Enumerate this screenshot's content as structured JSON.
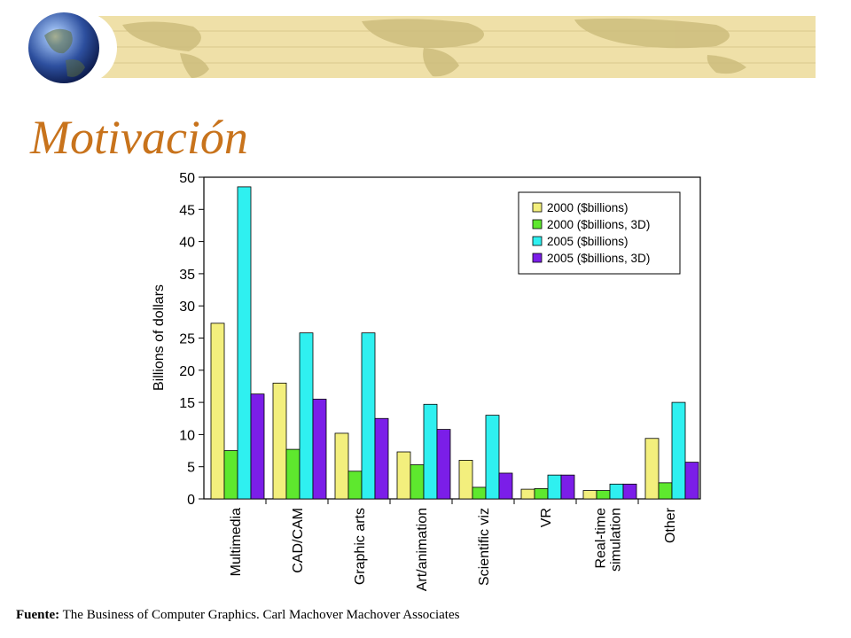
{
  "slide": {
    "title": "Motivación",
    "source_label": "Fuente:",
    "source_text": "The Business of Computer Graphics. Carl Machover Machover Associates"
  },
  "decor": {
    "banner_color": "#efe0a8",
    "title_color": "#c8731c",
    "globe_icon": "globe-icon"
  },
  "chart_data": {
    "type": "bar",
    "title": "",
    "xlabel": "",
    "ylabel": "Billions of dollars",
    "ylim": [
      0,
      50
    ],
    "yticks": [
      0,
      5,
      10,
      15,
      20,
      25,
      30,
      35,
      40,
      45,
      50
    ],
    "categories": [
      "Multimedia",
      "CAD/CAM",
      "Graphic arts",
      "Art/animation",
      "Scientific viz",
      "VR",
      "Real-time simulation",
      "Other"
    ],
    "category_lines": [
      [
        "Multimedia"
      ],
      [
        "CAD/CAM"
      ],
      [
        "Graphic arts"
      ],
      [
        "Art/animation"
      ],
      [
        "Scientific viz"
      ],
      [
        "VR"
      ],
      [
        "Real-time",
        "simulation"
      ],
      [
        "Other"
      ]
    ],
    "series": [
      {
        "name": "2000 ($billions)",
        "color": "#f3ef7d",
        "values": [
          27.3,
          18.0,
          10.2,
          7.3,
          6.0,
          1.5,
          1.3,
          9.4
        ]
      },
      {
        "name": "2000 ($billions, 3D)",
        "color": "#5ee82e",
        "values": [
          7.5,
          7.7,
          4.3,
          5.3,
          1.8,
          1.6,
          1.3,
          2.5
        ]
      },
      {
        "name": "2005 ($billions)",
        "color": "#2ff0f0",
        "values": [
          48.5,
          25.8,
          25.8,
          14.7,
          13.0,
          3.7,
          2.3,
          15.0
        ]
      },
      {
        "name": "2005 ($billions, 3D)",
        "color": "#7b1ee8",
        "values": [
          16.3,
          15.5,
          12.5,
          10.8,
          4.0,
          3.7,
          2.3,
          5.7
        ]
      }
    ],
    "grid": false,
    "legend_position": "top-right"
  }
}
